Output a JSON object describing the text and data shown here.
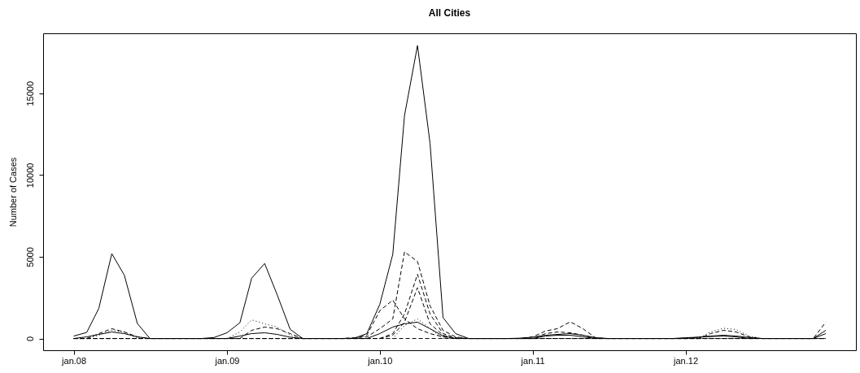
{
  "chart_data": {
    "type": "line",
    "title": "All Cities",
    "ylabel": "Number of Cases",
    "x": [
      "2008-01",
      "2008-02",
      "2008-03",
      "2008-04",
      "2008-05",
      "2008-06",
      "2008-07",
      "2008-08",
      "2008-09",
      "2008-10",
      "2008-11",
      "2008-12",
      "2009-01",
      "2009-02",
      "2009-03",
      "2009-04",
      "2009-05",
      "2009-06",
      "2009-07",
      "2009-08",
      "2009-09",
      "2009-10",
      "2009-11",
      "2009-12",
      "2010-01",
      "2010-02",
      "2010-03",
      "2010-04",
      "2010-05",
      "2010-06",
      "2010-07",
      "2010-08",
      "2010-09",
      "2010-10",
      "2010-11",
      "2010-12",
      "2011-01",
      "2011-02",
      "2011-03",
      "2011-04",
      "2011-05",
      "2011-06",
      "2011-07",
      "2011-08",
      "2011-09",
      "2011-10",
      "2011-11",
      "2011-12",
      "2012-01",
      "2012-02",
      "2012-03",
      "2012-04",
      "2012-05",
      "2012-06",
      "2012-07",
      "2012-08",
      "2012-09",
      "2012-10",
      "2012-11",
      "2012-12"
    ],
    "xlim": [
      "2007-10-20",
      "2013-02-11"
    ],
    "xticks": [
      {
        "value": "2008-01",
        "label": "jan.08"
      },
      {
        "value": "2009-01",
        "label": "jan.09"
      },
      {
        "value": "2010-01",
        "label": "jan.10"
      },
      {
        "value": "2011-01",
        "label": "jan.11"
      },
      {
        "value": "2012-01",
        "label": "jan.12"
      }
    ],
    "ylim": [
      -718,
      18668
    ],
    "yticks": [
      0,
      5000,
      10000,
      15000
    ],
    "grid": false,
    "marker": "none",
    "series": [
      {
        "color": "#000000",
        "line_style": "solid",
        "values": [
          150,
          370,
          1840,
          5190,
          3870,
          920,
          0,
          0,
          0,
          0,
          0,
          60,
          350,
          970,
          3690,
          4590,
          2670,
          560,
          0,
          0,
          0,
          0,
          20,
          300,
          2090,
          5150,
          13640,
          17920,
          11940,
          1280,
          300,
          0,
          0,
          0,
          0,
          20,
          80,
          200,
          250,
          300,
          200,
          50,
          0,
          0,
          0,
          0,
          0,
          0,
          50,
          80,
          150,
          200,
          150,
          60,
          0,
          0,
          0,
          0,
          0,
          300
        ]
      },
      {
        "color": "#000000",
        "line_style": "dashed",
        "values": [
          0,
          0,
          300,
          600,
          400,
          100,
          0,
          0,
          0,
          0,
          0,
          0,
          0,
          0,
          500,
          700,
          600,
          300,
          0,
          0,
          0,
          0,
          50,
          100,
          600,
          1200,
          5300,
          4710,
          2000,
          500,
          100,
          0,
          0,
          0,
          0,
          0,
          0,
          300,
          400,
          350,
          200,
          0,
          0,
          0,
          0,
          0,
          0,
          0,
          0,
          0,
          300,
          500,
          400,
          100,
          0,
          0,
          0,
          0,
          0,
          0
        ]
      },
      {
        "color": "#000000",
        "line_style": "dashed",
        "values": [
          0,
          0,
          0,
          0,
          0,
          0,
          0,
          0,
          0,
          0,
          0,
          0,
          0,
          0,
          0,
          0,
          0,
          0,
          0,
          0,
          0,
          0,
          0,
          0,
          0,
          300,
          1500,
          3930,
          1500,
          300,
          50,
          0,
          0,
          0,
          0,
          0,
          0,
          0,
          0,
          0,
          0,
          0,
          0,
          0,
          0,
          0,
          0,
          0,
          0,
          0,
          0,
          0,
          0,
          0,
          0,
          0,
          0,
          0,
          0,
          0
        ]
      },
      {
        "color": "#000000",
        "line_style": "dashed",
        "values": [
          0,
          0,
          0,
          0,
          0,
          0,
          0,
          0,
          0,
          0,
          0,
          0,
          0,
          0,
          0,
          0,
          0,
          0,
          0,
          0,
          0,
          0,
          0,
          0,
          0,
          200,
          1000,
          3110,
          900,
          200,
          0,
          0,
          0,
          0,
          0,
          0,
          0,
          0,
          0,
          0,
          0,
          0,
          0,
          0,
          0,
          0,
          0,
          0,
          0,
          0,
          0,
          0,
          0,
          0,
          0,
          0,
          0,
          0,
          0,
          0
        ]
      },
      {
        "color": "#000000",
        "line_style": "dashed",
        "values": [
          0,
          0,
          0,
          0,
          0,
          0,
          0,
          0,
          0,
          0,
          0,
          0,
          0,
          0,
          0,
          0,
          0,
          0,
          0,
          0,
          0,
          0,
          0,
          200,
          1700,
          2350,
          1200,
          600,
          300,
          100,
          0,
          0,
          0,
          0,
          0,
          0,
          0,
          0,
          0,
          0,
          0,
          0,
          0,
          0,
          0,
          0,
          0,
          0,
          0,
          0,
          0,
          0,
          0,
          0,
          0,
          0,
          0,
          0,
          0,
          0
        ]
      },
      {
        "color": "#000000",
        "line_style": "dashed",
        "values": [
          0,
          0,
          0,
          0,
          0,
          0,
          0,
          0,
          0,
          0,
          0,
          0,
          0,
          0,
          0,
          0,
          0,
          0,
          0,
          0,
          0,
          0,
          0,
          0,
          0,
          0,
          0,
          0,
          0,
          0,
          0,
          0,
          0,
          0,
          0,
          0,
          100,
          460,
          600,
          1020,
          600,
          30,
          0,
          0,
          0,
          0,
          0,
          0,
          0,
          0,
          0,
          0,
          0,
          0,
          0,
          0,
          0,
          0,
          0,
          1000
        ]
      },
      {
        "color": "#000000",
        "line_style": "dotted",
        "values": [
          0,
          0,
          200,
          500,
          400,
          0,
          0,
          0,
          0,
          0,
          0,
          0,
          0,
          400,
          1140,
          900,
          700,
          200,
          0,
          0,
          0,
          0,
          0,
          0,
          0,
          0,
          800,
          1200,
          600,
          0,
          0,
          0,
          0,
          0,
          0,
          0,
          0,
          0,
          0,
          0,
          0,
          0,
          0,
          0,
          0,
          0,
          0,
          0,
          0,
          0,
          400,
          630,
          550,
          150,
          0,
          0,
          0,
          0,
          0,
          0
        ]
      },
      {
        "color": "#000000",
        "line_style": "solid",
        "values": [
          0,
          100,
          250,
          400,
          300,
          100,
          0,
          0,
          0,
          0,
          0,
          0,
          0,
          150,
          300,
          350,
          250,
          80,
          0,
          0,
          0,
          0,
          0,
          0,
          300,
          700,
          900,
          1000,
          600,
          150,
          0,
          0,
          0,
          0,
          0,
          0,
          0,
          150,
          200,
          200,
          100,
          0,
          0,
          0,
          0,
          0,
          0,
          0,
          0,
          80,
          120,
          150,
          100,
          0,
          0,
          0,
          0,
          0,
          0,
          500
        ]
      }
    ]
  }
}
